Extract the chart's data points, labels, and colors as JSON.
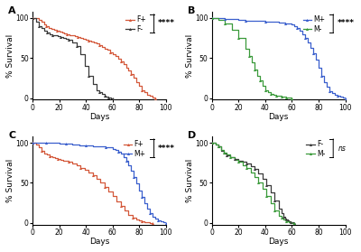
{
  "panel_A": {
    "title": "A",
    "xlabel": "Days",
    "ylabel": "% Survival",
    "xlim": [
      0,
      100
    ],
    "ylim": [
      -2,
      108
    ],
    "legend": [
      "F+",
      "F-"
    ],
    "sig": "****",
    "line1_color": "#D4583A",
    "line2_color": "#3A3A3A",
    "marker1": "^",
    "marker2": "^",
    "line1_x": [
      0,
      5,
      7,
      9,
      10,
      12,
      14,
      16,
      18,
      20,
      22,
      24,
      26,
      28,
      30,
      32,
      34,
      36,
      38,
      40,
      42,
      44,
      46,
      48,
      50,
      52,
      54,
      56,
      58,
      60,
      62,
      64,
      66,
      68,
      70,
      72,
      74,
      76,
      78,
      80,
      82,
      84,
      86,
      88,
      90,
      92
    ],
    "line1_y": [
      100,
      98,
      95,
      92,
      90,
      88,
      86,
      85,
      84,
      83,
      82,
      81,
      80,
      79,
      78,
      77,
      76,
      75,
      74,
      73,
      72,
      71,
      70,
      68,
      66,
      64,
      62,
      60,
      57,
      55,
      52,
      49,
      46,
      42,
      38,
      34,
      30,
      25,
      20,
      15,
      10,
      7,
      4,
      3,
      1,
      0
    ],
    "line2_x": [
      0,
      3,
      5,
      7,
      9,
      11,
      13,
      15,
      17,
      19,
      21,
      23,
      25,
      27,
      30,
      33,
      36,
      39,
      42,
      45,
      48,
      50,
      52,
      54,
      55,
      56,
      57,
      58,
      59,
      60
    ],
    "line2_y": [
      100,
      95,
      90,
      87,
      84,
      82,
      80,
      79,
      78,
      77,
      76,
      75,
      74,
      73,
      70,
      65,
      55,
      40,
      28,
      18,
      10,
      7,
      5,
      3,
      2,
      2,
      1,
      1,
      0,
      0
    ]
  },
  "panel_B": {
    "title": "B",
    "xlabel": "Days",
    "ylabel": "% Survival",
    "xlim": [
      0,
      100
    ],
    "ylim": [
      -2,
      108
    ],
    "legend": [
      "M+",
      "M-"
    ],
    "sig": "****",
    "line1_color": "#3A5FCD",
    "line2_color": "#3A9A3A",
    "marker1": "^",
    "marker2": "^",
    "line1_x": [
      0,
      5,
      10,
      15,
      20,
      25,
      30,
      35,
      40,
      45,
      50,
      55,
      60,
      62,
      64,
      66,
      68,
      70,
      72,
      74,
      76,
      78,
      80,
      82,
      84,
      86,
      88,
      90,
      92,
      94,
      96,
      98,
      100
    ],
    "line1_y": [
      100,
      100,
      99,
      99,
      98,
      97,
      96,
      96,
      95,
      95,
      94,
      93,
      92,
      90,
      87,
      84,
      80,
      75,
      70,
      63,
      56,
      48,
      38,
      28,
      20,
      14,
      9,
      6,
      4,
      3,
      2,
      1,
      0
    ],
    "line2_x": [
      0,
      5,
      10,
      15,
      20,
      25,
      28,
      30,
      32,
      34,
      36,
      38,
      40,
      42,
      44,
      46,
      48,
      50,
      52,
      54,
      56,
      58,
      60
    ],
    "line2_y": [
      100,
      98,
      93,
      85,
      75,
      62,
      52,
      45,
      36,
      28,
      22,
      15,
      10,
      7,
      5,
      4,
      3,
      3,
      2,
      2,
      1,
      1,
      0
    ]
  },
  "panel_C": {
    "title": "C",
    "xlabel": "Days",
    "ylabel": "% Survival",
    "xlim": [
      0,
      100
    ],
    "ylim": [
      -2,
      108
    ],
    "legend": [
      "F+",
      "M+"
    ],
    "sig": "****",
    "line1_color": "#D4583A",
    "line2_color": "#3A5FCD",
    "marker1": "^",
    "marker2": "^",
    "line1_x": [
      0,
      3,
      5,
      7,
      9,
      11,
      13,
      15,
      17,
      19,
      21,
      23,
      25,
      27,
      30,
      33,
      36,
      39,
      42,
      45,
      48,
      51,
      54,
      57,
      60,
      63,
      66,
      69,
      72,
      75,
      78,
      80,
      82,
      84,
      86,
      88,
      90
    ],
    "line1_y": [
      100,
      98,
      94,
      90,
      87,
      85,
      83,
      82,
      81,
      80,
      79,
      78,
      77,
      76,
      74,
      72,
      69,
      66,
      63,
      59,
      55,
      50,
      45,
      39,
      33,
      27,
      21,
      15,
      10,
      7,
      4,
      3,
      2,
      1,
      1,
      0,
      0
    ],
    "line2_x": [
      0,
      5,
      10,
      15,
      20,
      25,
      30,
      35,
      40,
      45,
      50,
      55,
      60,
      62,
      64,
      66,
      68,
      70,
      72,
      74,
      76,
      78,
      80,
      82,
      84,
      86,
      88,
      90,
      92,
      94,
      96,
      98,
      100
    ],
    "line2_y": [
      100,
      100,
      100,
      100,
      99,
      99,
      98,
      97,
      97,
      96,
      95,
      94,
      92,
      91,
      89,
      86,
      82,
      78,
      72,
      65,
      57,
      49,
      40,
      32,
      25,
      18,
      12,
      8,
      5,
      3,
      2,
      1,
      0
    ]
  },
  "panel_D": {
    "title": "D",
    "xlabel": "Days",
    "ylabel": "% Survival",
    "xlim": [
      0,
      100
    ],
    "ylim": [
      -2,
      108
    ],
    "legend": [
      "F-",
      "M-"
    ],
    "sig": "ns",
    "line1_color": "#3A3A3A",
    "line2_color": "#3A9A3A",
    "marker1": "^",
    "marker2": "^",
    "line1_x": [
      0,
      3,
      5,
      7,
      9,
      11,
      14,
      17,
      20,
      23,
      26,
      29,
      32,
      35,
      38,
      41,
      44,
      47,
      50,
      52,
      54,
      55,
      56,
      57,
      58,
      59,
      60,
      61,
      62
    ],
    "line1_y": [
      100,
      98,
      95,
      90,
      87,
      84,
      82,
      80,
      78,
      76,
      74,
      71,
      67,
      62,
      55,
      47,
      38,
      28,
      18,
      12,
      8,
      5,
      4,
      3,
      2,
      1,
      1,
      0,
      0
    ],
    "line2_x": [
      0,
      3,
      5,
      7,
      9,
      11,
      14,
      17,
      20,
      23,
      26,
      29,
      32,
      35,
      38,
      41,
      44,
      47,
      50,
      52,
      54,
      56,
      58,
      60,
      62
    ],
    "line2_y": [
      100,
      98,
      95,
      91,
      88,
      85,
      82,
      79,
      76,
      72,
      68,
      63,
      57,
      50,
      42,
      33,
      24,
      16,
      9,
      6,
      4,
      2,
      1,
      0,
      0
    ]
  },
  "tick_fontsize": 5.5,
  "label_fontsize": 6.5,
  "legend_fontsize": 5.5,
  "sig_fontsize": 6.5,
  "panel_label_fontsize": 8
}
